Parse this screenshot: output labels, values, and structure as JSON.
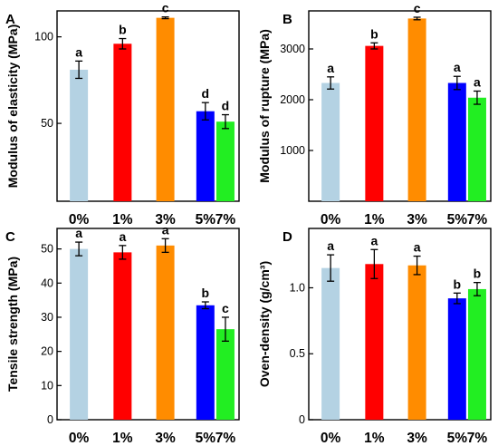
{
  "chart_data": [
    {
      "type": "bar",
      "panel": "A",
      "ylabel": "Modulus of elasticity (MPa)",
      "ylim": [
        5,
        115
      ],
      "yticks": [
        50,
        100
      ],
      "categories": [
        "0%",
        "1%",
        "3%",
        "5%",
        "7%"
      ],
      "values": [
        81,
        96,
        111,
        57,
        51
      ],
      "errors": [
        5,
        3,
        0.5,
        5,
        4
      ],
      "sig_letters": [
        "a",
        "b",
        "c",
        "d",
        "d"
      ],
      "colors": [
        "#b4d2e3",
        "#ff0000",
        "#ff8c00",
        "#0000ff",
        "#22ee22"
      ]
    },
    {
      "type": "bar",
      "panel": "B",
      "ylabel": "Modulus of rupture (MPa)",
      "ylim": [
        0,
        3750
      ],
      "yticks": [
        1000,
        2000,
        3000
      ],
      "categories": [
        "0%",
        "1%",
        "3%",
        "5%",
        "7%"
      ],
      "values": [
        2330,
        3060,
        3600,
        2330,
        2040
      ],
      "errors": [
        120,
        60,
        25,
        130,
        130
      ],
      "sig_letters": [
        "a",
        "b",
        "c",
        "a",
        "a"
      ],
      "colors": [
        "#b4d2e3",
        "#ff0000",
        "#ff8c00",
        "#0000ff",
        "#22ee22"
      ]
    },
    {
      "type": "bar",
      "panel": "C",
      "ylabel": "Tensile strength (MPa)",
      "ylim": [
        0,
        56
      ],
      "yticks": [
        0,
        10,
        20,
        30,
        40,
        50
      ],
      "categories": [
        "0%",
        "1%",
        "3%",
        "5%",
        "7%"
      ],
      "values": [
        50,
        49,
        51,
        33.5,
        26.5
      ],
      "errors": [
        2,
        2,
        2,
        1,
        3.5
      ],
      "sig_letters": [
        "a",
        "a",
        "a",
        "b",
        "c"
      ],
      "colors": [
        "#b4d2e3",
        "#ff0000",
        "#ff8c00",
        "#0000ff",
        "#22ee22"
      ]
    },
    {
      "type": "bar",
      "panel": "D",
      "ylabel": "Oven-density (g/cm³)",
      "ylim": [
        0,
        1.45
      ],
      "yticks": [
        0,
        0.5,
        1.0
      ],
      "ytick_labels": [
        "0",
        "0.5",
        "1.0"
      ],
      "categories": [
        "0%",
        "1%",
        "3%",
        "5%",
        "7%"
      ],
      "values": [
        1.15,
        1.18,
        1.17,
        0.92,
        0.99
      ],
      "errors": [
        0.1,
        0.11,
        0.07,
        0.04,
        0.05
      ],
      "sig_letters": [
        "a",
        "a",
        "a",
        "b",
        "b"
      ],
      "colors": [
        "#b4d2e3",
        "#ff0000",
        "#ff8c00",
        "#0000ff",
        "#22ee22"
      ]
    }
  ]
}
